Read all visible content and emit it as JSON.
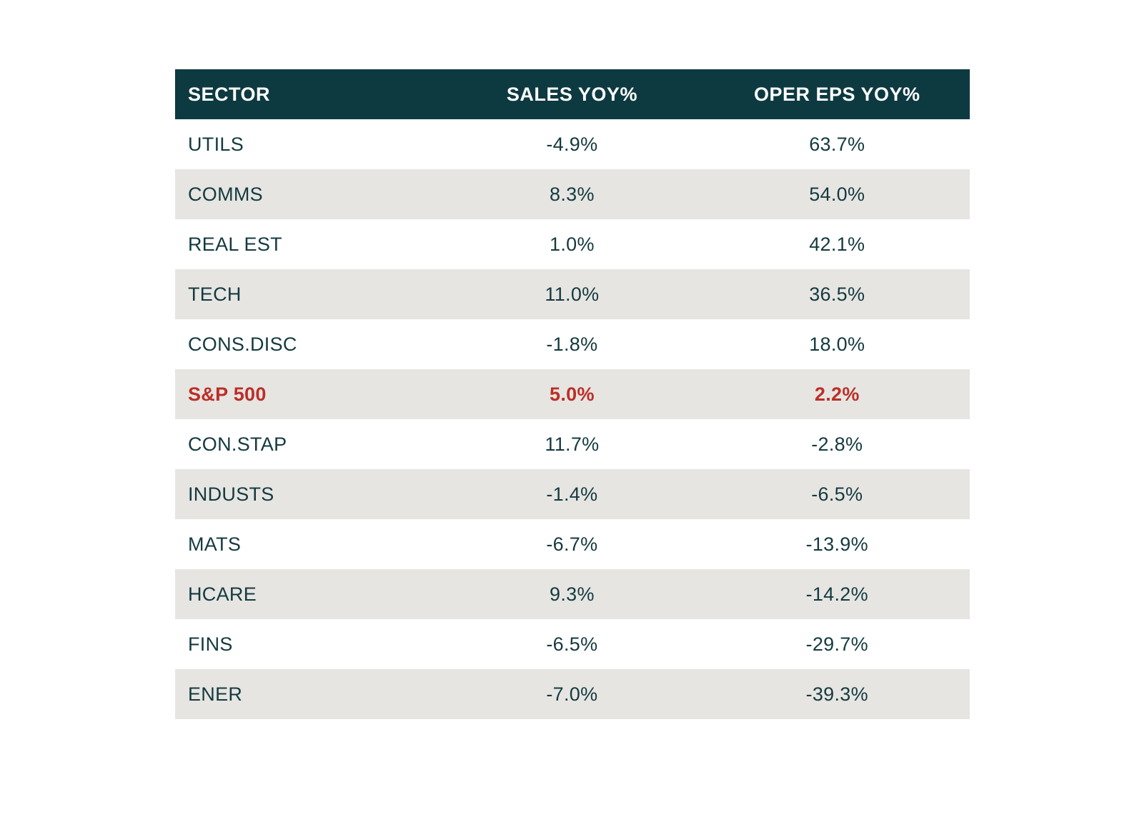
{
  "table": {
    "columns": [
      {
        "key": "sector",
        "label": "SECTOR"
      },
      {
        "key": "sales",
        "label": "SALES YOY%"
      },
      {
        "key": "eps",
        "label": "OPER EPS YOY%"
      }
    ],
    "rows": [
      {
        "sector": "UTILS",
        "sales": "-4.9%",
        "eps": "63.7%",
        "highlight": false
      },
      {
        "sector": "COMMS",
        "sales": "8.3%",
        "eps": "54.0%",
        "highlight": false
      },
      {
        "sector": "REAL EST",
        "sales": "1.0%",
        "eps": "42.1%",
        "highlight": false
      },
      {
        "sector": "TECH",
        "sales": "11.0%",
        "eps": "36.5%",
        "highlight": false
      },
      {
        "sector": "CONS.DISC",
        "sales": "-1.8%",
        "eps": "18.0%",
        "highlight": false
      },
      {
        "sector": "S&P 500",
        "sales": "5.0%",
        "eps": "2.2%",
        "highlight": true
      },
      {
        "sector": "CON.STAP",
        "sales": "11.7%",
        "eps": "-2.8%",
        "highlight": false
      },
      {
        "sector": "INDUSTS",
        "sales": "-1.4%",
        "eps": "-6.5%",
        "highlight": false
      },
      {
        "sector": "MATS",
        "sales": "-6.7%",
        "eps": "-13.9%",
        "highlight": false
      },
      {
        "sector": "HCARE",
        "sales": "9.3%",
        "eps": "-14.2%",
        "highlight": false
      },
      {
        "sector": "FINS",
        "sales": "-6.5%",
        "eps": "-29.7%",
        "highlight": false
      },
      {
        "sector": "ENER",
        "sales": "-7.0%",
        "eps": "-39.3%",
        "highlight": false
      }
    ]
  },
  "colors": {
    "header_bg": "#0d3a40",
    "header_text": "#ffffff",
    "row_text": "#143a3f",
    "zebra_bg": "#e6e5e2",
    "white_bg": "#ffffff",
    "highlight_red": "#bb2f27"
  },
  "chart_data": {
    "type": "table",
    "title": "",
    "columns": [
      "SECTOR",
      "SALES YOY%",
      "OPER EPS YOY%"
    ],
    "rows": [
      [
        "UTILS",
        -4.9,
        63.7
      ],
      [
        "COMMS",
        8.3,
        54.0
      ],
      [
        "REAL EST",
        1.0,
        42.1
      ],
      [
        "TECH",
        11.0,
        36.5
      ],
      [
        "CONS.DISC",
        -1.8,
        18.0
      ],
      [
        "S&P 500",
        5.0,
        2.2
      ],
      [
        "CON.STAP",
        11.7,
        -2.8
      ],
      [
        "INDUSTS",
        -1.4,
        -6.5
      ],
      [
        "MATS",
        -6.7,
        -13.9
      ],
      [
        "HCARE",
        9.3,
        -14.2
      ],
      [
        "FINS",
        -6.5,
        -29.7
      ],
      [
        "ENER",
        -7.0,
        -39.3
      ]
    ],
    "highlight_row": "S&P 500",
    "layout": {
      "zebra_striping": true,
      "header_style": "dark-teal",
      "value_format": "percent"
    }
  }
}
